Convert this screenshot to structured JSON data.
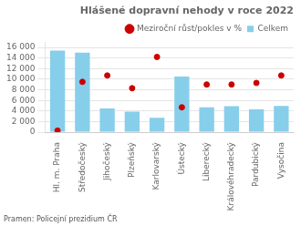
{
  "chart_data": {
    "type": "bar",
    "title": "Hlášené dopravní nehody v roce 2022",
    "categories": [
      "Hl. m. Praha",
      "Středočeský",
      "Jihočeský",
      "Plzeňský",
      "Karlovarský",
      "Ústecký",
      "Liberecký",
      "Královéhradecký",
      "Pardubický",
      "Vysočina"
    ],
    "series": [
      {
        "name": "Celkem",
        "type": "bar",
        "color": "#87CEEB",
        "values": [
          15400,
          15000,
          4500,
          3900,
          2700,
          10500,
          4700,
          4900,
          4300,
          4950
        ]
      },
      {
        "name": "Meziroční růst/pokles v %",
        "type": "scatter",
        "color": "#CC0000",
        "marker": "circle",
        "values": [
          300,
          9500,
          10700,
          8300,
          14200,
          4700,
          9000,
          9000,
          9300,
          10700
        ]
      }
    ],
    "ylim": [
      0,
      17000
    ],
    "yticks": [
      0,
      {
        "value": 2000,
        "label": "2 000"
      },
      {
        "value": 4000,
        "label": "4 000"
      },
      {
        "value": 6000,
        "label": "6 000"
      },
      {
        "value": 8000,
        "label": "8 000"
      },
      {
        "value": 10000,
        "label": "10 000"
      },
      {
        "value": 12000,
        "label": "12 000"
      },
      {
        "value": 14000,
        "label": "14 000"
      },
      {
        "value": 16000,
        "label": "16 000"
      }
    ],
    "grid": true,
    "legend": "upper right",
    "annotations": [
      "Pramen: Policejní prezidium ČR"
    ]
  }
}
